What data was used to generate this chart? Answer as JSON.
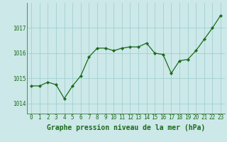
{
  "x": [
    0,
    1,
    2,
    3,
    4,
    5,
    6,
    7,
    8,
    9,
    10,
    11,
    12,
    13,
    14,
    15,
    16,
    17,
    18,
    19,
    20,
    21,
    22,
    23
  ],
  "y": [
    1014.7,
    1014.7,
    1014.85,
    1014.75,
    1014.2,
    1014.7,
    1015.1,
    1015.85,
    1016.2,
    1016.2,
    1016.1,
    1016.2,
    1016.25,
    1016.25,
    1016.4,
    1016.0,
    1015.95,
    1015.2,
    1015.7,
    1015.75,
    1016.1,
    1016.55,
    1017.0,
    1017.5
  ],
  "line_color": "#1a6b1a",
  "marker": "D",
  "marker_size": 2.2,
  "background_color": "#cce8e8",
  "grid_color": "#99cccc",
  "xlabel": "Graphe pression niveau de la mer (hPa)",
  "tick_color": "#1a6b1a",
  "ylim": [
    1013.6,
    1018.0
  ],
  "yticks": [
    1014,
    1015,
    1016,
    1017
  ],
  "xticks": [
    0,
    1,
    2,
    3,
    4,
    5,
    6,
    7,
    8,
    9,
    10,
    11,
    12,
    13,
    14,
    15,
    16,
    17,
    18,
    19,
    20,
    21,
    22,
    23
  ],
  "tick_fontsize": 5.5,
  "xlabel_fontsize": 7.0,
  "xlabel_color": "#1a6b1a"
}
